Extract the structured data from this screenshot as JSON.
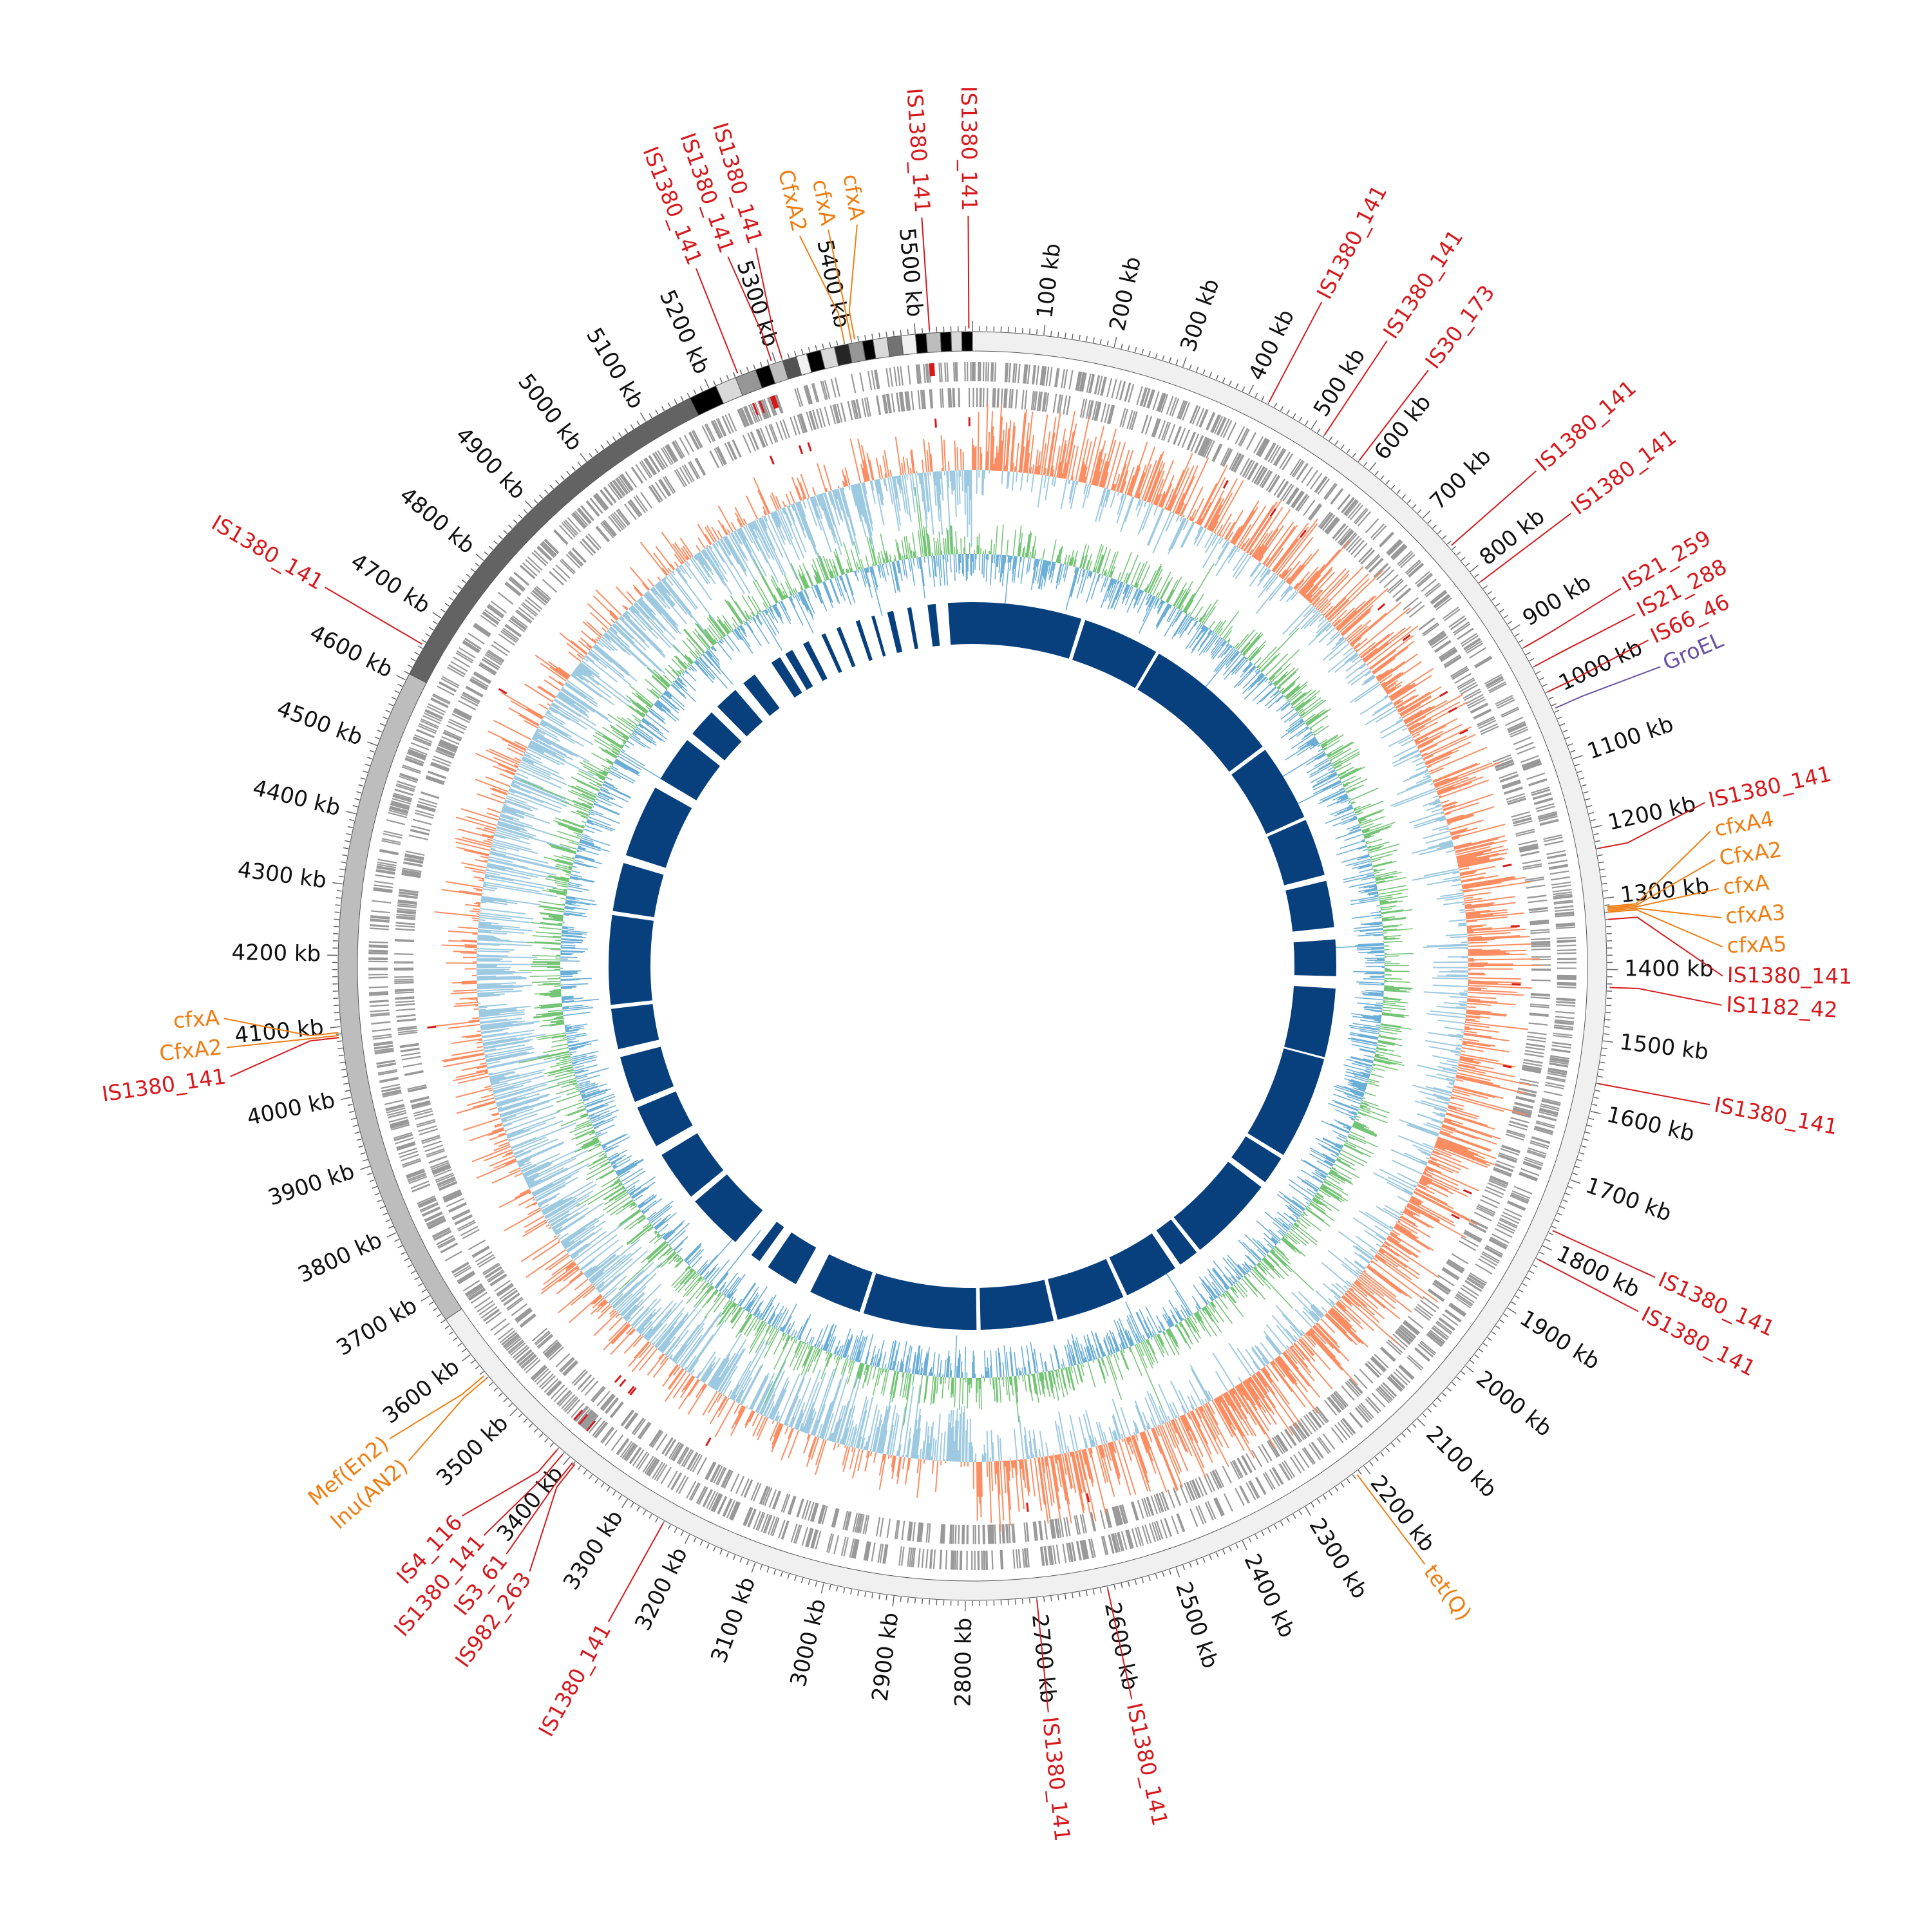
{
  "genome": {
    "length_kb": 5580,
    "ruler_labels": [
      "100 kb",
      "200 kb",
      "300 kb",
      "400 kb",
      "500 kb",
      "600 kb",
      "700 kb",
      "800 kb",
      "900 kb",
      "1000 kb",
      "1100 kb",
      "1200 kb",
      "1300 kb",
      "1400 kb",
      "1500 kb",
      "1600 kb",
      "1700 kb",
      "1800 kb",
      "1900 kb",
      "2000 kb",
      "2100 kb",
      "2200 kb",
      "2300 kb",
      "2400 kb",
      "2500 kb",
      "2600 kb",
      "2700 kb",
      "2800 kb",
      "2900 kb",
      "3000 kb",
      "3100 kb",
      "3200 kb",
      "3300 kb",
      "3400 kb",
      "3500 kb",
      "3600 kb",
      "3700 kb",
      "3800 kb",
      "3900 kb",
      "4000 kb",
      "4100 kb",
      "4200 kb",
      "4300 kb",
      "4400 kb",
      "4500 kb",
      "4600 kb",
      "4700 kb",
      "4800 kb",
      "4900 kb",
      "5000 kb",
      "5100 kb",
      "5200 kb",
      "5300 kb",
      "5400 kb",
      "5500 kb"
    ]
  },
  "contig_blocks": [
    {
      "start": 0,
      "end": 3660,
      "color": "#f0f0f0"
    },
    {
      "start": 3660,
      "end": 4610,
      "color": "#bdbdbd"
    },
    {
      "start": 4610,
      "end": 5170,
      "color": "#636363"
    },
    {
      "start": 5170,
      "end": 5210,
      "color": "#000000"
    },
    {
      "start": 5210,
      "end": 5240,
      "color": "#d9d9d9"
    },
    {
      "start": 5240,
      "end": 5270,
      "color": "#969696"
    },
    {
      "start": 5270,
      "end": 5290,
      "color": "#000000"
    },
    {
      "start": 5290,
      "end": 5310,
      "color": "#bdbdbd"
    },
    {
      "start": 5310,
      "end": 5330,
      "color": "#525252"
    },
    {
      "start": 5330,
      "end": 5345,
      "color": "#f0f0f0"
    },
    {
      "start": 5345,
      "end": 5365,
      "color": "#000000"
    },
    {
      "start": 5365,
      "end": 5385,
      "color": "#d9d9d9"
    },
    {
      "start": 5385,
      "end": 5405,
      "color": "#252525"
    },
    {
      "start": 5405,
      "end": 5425,
      "color": "#969696"
    },
    {
      "start": 5425,
      "end": 5440,
      "color": "#000000"
    },
    {
      "start": 5440,
      "end": 5460,
      "color": "#d9d9d9"
    },
    {
      "start": 5460,
      "end": 5480,
      "color": "#737373"
    },
    {
      "start": 5480,
      "end": 5500,
      "color": "#f0f0f0"
    },
    {
      "start": 5500,
      "end": 5515,
      "color": "#000000"
    },
    {
      "start": 5515,
      "end": 5535,
      "color": "#bdbdbd"
    },
    {
      "start": 5535,
      "end": 5550,
      "color": "#000000"
    },
    {
      "start": 5550,
      "end": 5565,
      "color": "#d9d9d9"
    },
    {
      "start": 5565,
      "end": 5580,
      "color": "#000000"
    }
  ],
  "tracks": {
    "gc_skew": {
      "positive_color": "#fc8d62",
      "negative_color": "#9ecae1",
      "line_color": "#6baed6"
    },
    "gc_content": {
      "positive_color": "#74c476",
      "negative_color": "#6baed6"
    },
    "homology": {
      "color": "#08407e",
      "blocks": [
        {
          "start": 0,
          "end": 270
        },
        {
          "start": 280,
          "end": 470
        },
        {
          "start": 478,
          "end": 820
        },
        {
          "start": 830,
          "end": 1020
        },
        {
          "start": 1028,
          "end": 1170
        },
        {
          "start": 1185,
          "end": 1300
        },
        {
          "start": 1330,
          "end": 1420
        },
        {
          "start": 1450,
          "end": 1620
        },
        {
          "start": 1625,
          "end": 1880
        },
        {
          "start": 1890,
          "end": 1960
        },
        {
          "start": 1975,
          "end": 2190
        },
        {
          "start": 2200,
          "end": 2250
        },
        {
          "start": 2265,
          "end": 2400
        },
        {
          "start": 2410,
          "end": 2580
        },
        {
          "start": 2590,
          "end": 2770
        },
        {
          "start": 2780,
          "end": 3060
        },
        {
          "start": 3070,
          "end": 3200
        },
        {
          "start": 3240,
          "end": 3320
        },
        {
          "start": 3345,
          "end": 3370
        },
        {
          "start": 3420,
          "end": 3560
        },
        {
          "start": 3575,
          "end": 3700
        },
        {
          "start": 3725,
          "end": 3830
        },
        {
          "start": 3845,
          "end": 3960
        },
        {
          "start": 3980,
          "end": 4080
        },
        {
          "start": 4090,
          "end": 4310
        },
        {
          "start": 4320,
          "end": 4440
        },
        {
          "start": 4460,
          "end": 4640
        },
        {
          "start": 4665,
          "end": 4780
        },
        {
          "start": 4800,
          "end": 4870
        },
        {
          "start": 4890,
          "end": 4950
        },
        {
          "start": 4975,
          "end": 5010
        },
        {
          "start": 5060,
          "end": 5085
        },
        {
          "start": 5100,
          "end": 5120
        },
        {
          "start": 5150,
          "end": 5165
        },
        {
          "start": 5200,
          "end": 5210
        },
        {
          "start": 5240,
          "end": 5250
        },
        {
          "start": 5290,
          "end": 5300
        },
        {
          "start": 5330,
          "end": 5338
        },
        {
          "start": 5370,
          "end": 5385
        },
        {
          "start": 5420,
          "end": 5430
        },
        {
          "start": 5470,
          "end": 5490
        },
        {
          "start": 5520,
          "end": 5580
        }
      ]
    }
  },
  "feature_marks": [
    {
      "pos": 5520,
      "kind": "block"
    },
    {
      "pos": 5280,
      "kind": "block"
    },
    {
      "pos": 5250,
      "kind": "tick"
    },
    {
      "pos": 5260,
      "kind": "tick"
    },
    {
      "pos": 3420,
      "kind": "tick"
    },
    {
      "pos": 3430,
      "kind": "tick"
    },
    {
      "pos": 3405,
      "kind": "tick"
    }
  ],
  "annotations": [
    {
      "pos": 5575,
      "label": "IS1380_141",
      "group": "IS"
    },
    {
      "pos": 5520,
      "label": "IS1380_141",
      "group": "IS"
    },
    {
      "pos": 5415,
      "label": "cfxA",
      "group": "ARG"
    },
    {
      "pos": 5410,
      "label": "cfxA",
      "group": "ARG"
    },
    {
      "pos": 5400,
      "label": "CfxA2",
      "group": "ARG"
    },
    {
      "pos": 5310,
      "label": "IS1380_141",
      "group": "IS"
    },
    {
      "pos": 5295,
      "label": "IS1380_141",
      "group": "IS"
    },
    {
      "pos": 5245,
      "label": "IS1380_141",
      "group": "IS"
    },
    {
      "pos": 430,
      "label": "IS1380_141",
      "group": "IS"
    },
    {
      "pos": 520,
      "label": "IS1380_141",
      "group": "IS"
    },
    {
      "pos": 580,
      "label": "IS30_173",
      "group": "IS"
    },
    {
      "pos": 755,
      "label": "IS1380_141",
      "group": "IS"
    },
    {
      "pos": 820,
      "label": "IS1380_141",
      "group": "IS"
    },
    {
      "pos": 930,
      "label": "IS21_259",
      "group": "IS"
    },
    {
      "pos": 960,
      "label": "IS21_288",
      "group": "IS"
    },
    {
      "pos": 1000,
      "label": "IS66_46",
      "group": "IS"
    },
    {
      "pos": 1025,
      "label": "GroEL",
      "group": "VF"
    },
    {
      "pos": 1230,
      "label": "IS1380_141",
      "group": "IS"
    },
    {
      "pos": 1312,
      "label": "cfxA4",
      "group": "ARG"
    },
    {
      "pos": 1314,
      "label": "CfxA2",
      "group": "ARG"
    },
    {
      "pos": 1316,
      "label": "cfxA",
      "group": "ARG"
    },
    {
      "pos": 1318,
      "label": "cfxA3",
      "group": "ARG"
    },
    {
      "pos": 1320,
      "label": "cfxA5",
      "group": "ARG"
    },
    {
      "pos": 1330,
      "label": "IS1380_141",
      "group": "IS"
    },
    {
      "pos": 1425,
      "label": "IS1182_42",
      "group": "IS"
    },
    {
      "pos": 1560,
      "label": "IS1380_141",
      "group": "IS"
    },
    {
      "pos": 1775,
      "label": "IS1380_141",
      "group": "IS"
    },
    {
      "pos": 1820,
      "label": "IS1380_141",
      "group": "IS"
    },
    {
      "pos": 2215,
      "label": "tet(Q)",
      "group": "ARG"
    },
    {
      "pos": 2600,
      "label": "IS1380_141",
      "group": "IS"
    },
    {
      "pos": 2700,
      "label": "IS1380_141",
      "group": "IS"
    },
    {
      "pos": 3240,
      "label": "IS1380_141",
      "group": "IS"
    },
    {
      "pos": 3388,
      "label": "IS982_263",
      "group": "IS"
    },
    {
      "pos": 3392,
      "label": "IS3_61",
      "group": "IS"
    },
    {
      "pos": 3410,
      "label": "IS1380_141",
      "group": "IS"
    },
    {
      "pos": 3420,
      "label": "IS4_116",
      "group": "IS"
    },
    {
      "pos": 3560,
      "label": "lnu(AN2)",
      "group": "ARG"
    },
    {
      "pos": 3565,
      "label": "Mef(En2)",
      "group": "ARG"
    },
    {
      "pos": 4085,
      "label": "IS1380_141",
      "group": "IS"
    },
    {
      "pos": 4088,
      "label": "CfxA2",
      "group": "ARG"
    },
    {
      "pos": 4092,
      "label": "cfxA",
      "group": "ARG"
    },
    {
      "pos": 4655,
      "label": "IS1380_141",
      "group": "IS"
    }
  ],
  "colors": {
    "IS": "#d7191c",
    "ARG": "#f07d12",
    "VF": "#6a51a3",
    "gene": "#999999",
    "ruler": "#666666"
  }
}
